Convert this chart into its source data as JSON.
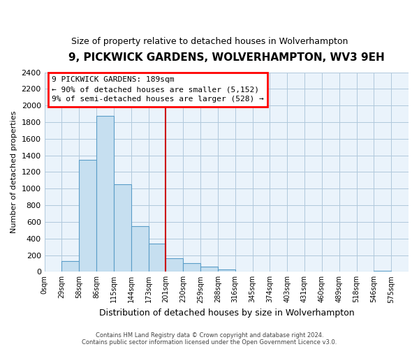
{
  "title": "9, PICKWICK GARDENS, WOLVERHAMPTON, WV3 9EH",
  "subtitle": "Size of property relative to detached houses in Wolverhampton",
  "xlabel": "Distribution of detached houses by size in Wolverhampton",
  "ylabel": "Number of detached properties",
  "bar_color": "#c6dff0",
  "bar_edge_color": "#5a9dc8",
  "background_color": "#ffffff",
  "plot_bg_color": "#eaf3fb",
  "grid_color": "#b0c8dc",
  "categories": [
    "0sqm",
    "29sqm",
    "58sqm",
    "86sqm",
    "115sqm",
    "144sqm",
    "173sqm",
    "201sqm",
    "230sqm",
    "259sqm",
    "288sqm",
    "316sqm",
    "345sqm",
    "374sqm",
    "403sqm",
    "431sqm",
    "460sqm",
    "489sqm",
    "518sqm",
    "546sqm",
    "575sqm"
  ],
  "values": [
    0,
    125,
    1350,
    1880,
    1050,
    550,
    340,
    160,
    105,
    60,
    30,
    0,
    0,
    0,
    0,
    0,
    0,
    0,
    0,
    15,
    0
  ],
  "ylim": [
    0,
    2400
  ],
  "yticks": [
    0,
    200,
    400,
    600,
    800,
    1000,
    1200,
    1400,
    1600,
    1800,
    2000,
    2200,
    2400
  ],
  "annotation_title": "9 PICKWICK GARDENS: 189sqm",
  "annotation_line1": "← 90% of detached houses are smaller (5,152)",
  "annotation_line2": "9% of semi-detached houses are larger (528) →",
  "vline_color": "#cc0000",
  "vline_index": 7,
  "footer_line1": "Contains HM Land Registry data © Crown copyright and database right 2024.",
  "footer_line2": "Contains public sector information licensed under the Open Government Licence v3.0."
}
